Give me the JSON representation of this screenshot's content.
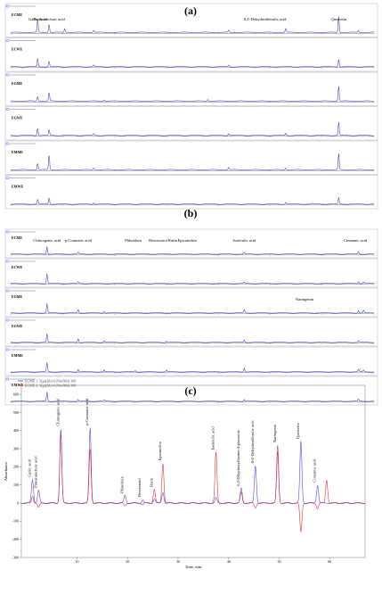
{
  "panels": [
    {
      "letter": "(a)",
      "samples": [
        "ECME",
        "ECWE",
        "EGME",
        "EGWE",
        "EMME",
        "EMWE"
      ],
      "compound_labels": [
        {
          "text": "Gallic Acid",
          "rt": 2.6
        },
        {
          "text": "Protocatechuic acid",
          "rt": 3.7
        },
        {
          "text": "8,4'-Dehydrodiferulic acid",
          "rt": 24.5
        },
        {
          "text": "Quercetin",
          "rt": 31.6
        }
      ],
      "peaks": [
        [
          [
            2.6,
            0.7
          ],
          [
            3.7,
            0.45
          ],
          [
            5.2,
            0.2
          ],
          [
            8.0,
            0.12
          ],
          [
            21.0,
            0.1
          ],
          [
            26.5,
            0.2
          ],
          [
            31.6,
            0.85
          ],
          [
            33.5,
            0.1
          ]
        ],
        [
          [
            2.6,
            0.45
          ],
          [
            3.7,
            0.3
          ],
          [
            8.0,
            0.08
          ],
          [
            21.0,
            0.08
          ],
          [
            31.6,
            0.4
          ]
        ],
        [
          [
            2.6,
            0.25
          ],
          [
            3.7,
            0.45
          ],
          [
            9.0,
            0.08
          ],
          [
            19.0,
            0.1
          ],
          [
            31.6,
            0.8
          ]
        ],
        [
          [
            2.6,
            0.4
          ],
          [
            3.7,
            0.3
          ],
          [
            8.0,
            0.1
          ],
          [
            21.0,
            0.1
          ],
          [
            26.5,
            0.12
          ],
          [
            31.6,
            0.7
          ]
        ],
        [
          [
            2.6,
            0.35
          ],
          [
            3.7,
            0.8
          ],
          [
            8.0,
            0.1
          ],
          [
            21.0,
            0.12
          ],
          [
            26.5,
            0.1
          ],
          [
            31.6,
            0.85
          ]
        ],
        [
          [
            2.6,
            0.25
          ],
          [
            3.7,
            0.35
          ],
          [
            8.0,
            0.08
          ],
          [
            26.5,
            0.1
          ],
          [
            31.6,
            0.35
          ]
        ]
      ]
    },
    {
      "letter": "(b)",
      "samples": [
        "ECME",
        "ECWE",
        "EGME",
        "EGWE",
        "EMME",
        "EMWE"
      ],
      "compound_labels": [
        {
          "text": "Chlorogenic acid",
          "rt": 3.5,
          "row": 0
        },
        {
          "text": "p-Coumaric acid",
          "rt": 6.5,
          "row": 0
        },
        {
          "text": "Phloridzin",
          "rt": 11.8,
          "row": 0
        },
        {
          "text": "Resveratrol",
          "rt": 14.2,
          "row": 0
        },
        {
          "text": "Rutin",
          "rt": 15.6,
          "row": 0
        },
        {
          "text": "Epicatechin",
          "rt": 17.0,
          "row": 0
        },
        {
          "text": "Isoferulic acid",
          "rt": 22.5,
          "row": 0
        },
        {
          "text": "Cinnamic acid",
          "rt": 33.2,
          "row": 0
        },
        {
          "text": "Naringenin",
          "rt": 28.3,
          "row": 2
        }
      ],
      "peaks": [
        [
          [
            3.5,
            0.45
          ],
          [
            6.5,
            0.12
          ],
          [
            22.5,
            0.1
          ],
          [
            33.5,
            0.15
          ]
        ],
        [
          [
            3.5,
            0.6
          ],
          [
            6.5,
            0.1
          ],
          [
            22.5,
            0.08
          ],
          [
            33.5,
            0.12
          ],
          [
            34.0,
            0.1
          ]
        ],
        [
          [
            3.5,
            0.55
          ],
          [
            6.5,
            0.22
          ],
          [
            9.0,
            0.1
          ],
          [
            22.5,
            0.2
          ],
          [
            33.5,
            0.15
          ],
          [
            34.0,
            0.15
          ]
        ],
        [
          [
            3.5,
            0.5
          ],
          [
            6.5,
            0.25
          ],
          [
            9.0,
            0.1
          ],
          [
            15.0,
            0.08
          ],
          [
            22.5,
            0.15
          ],
          [
            33.5,
            0.12
          ]
        ],
        [
          [
            3.5,
            0.55
          ],
          [
            6.5,
            0.15
          ],
          [
            9.0,
            0.1
          ],
          [
            12.0,
            0.08
          ],
          [
            15.0,
            0.1
          ],
          [
            22.5,
            0.25
          ],
          [
            33.5,
            0.15
          ],
          [
            34.0,
            0.1
          ]
        ],
        [
          [
            3.5,
            0.55
          ],
          [
            6.5,
            0.12
          ],
          [
            9.0,
            0.08
          ],
          [
            22.5,
            0.12
          ],
          [
            33.5,
            0.12
          ]
        ]
      ]
    },
    {
      "letter": "(c)",
      "xlabel": "Time, min",
      "ylabel": "Absorbance",
      "legend": [
        "ECME 1: 5(g)(2th) 4 (Nm/Mit) 300",
        "ECME 2: 5(g)(2th) 4 (Nm/Mit) 300"
      ],
      "compound_labels": [
        {
          "text": "Gallic acid",
          "rt": 1.2
        },
        {
          "text": "Protocatechuic acid",
          "rt": 2.4
        },
        {
          "text": "Chlorogenic acid",
          "rt": 6.8
        },
        {
          "text": "p-Coumaric acid",
          "rt": 12.6
        },
        {
          "text": "Phloridzin",
          "rt": 19.5
        },
        {
          "text": "Resveratrol",
          "rt": 23.0
        },
        {
          "text": "Rutin",
          "rt": 25.3
        },
        {
          "text": "Epicatechin",
          "rt": 27.0
        },
        {
          "text": "Isoferulic acid",
          "rt": 37.5
        },
        {
          "text": "6,2-Dihydroxyflavone-4-glucoside",
          "rt": 42.5
        },
        {
          "text": "8-4'-Dehydrodiferulic acid",
          "rt": 45.3
        },
        {
          "text": "Naringenin",
          "rt": 49.7
        },
        {
          "text": "Quercetin",
          "rt": 54.3
        },
        {
          "text": "Cinnamic acid",
          "rt": 57.6
        }
      ],
      "xticks": [
        10,
        20,
        30,
        40,
        50,
        60
      ],
      "yticks": [
        600,
        500,
        400,
        300,
        200,
        100,
        0,
        -100,
        -200,
        -300
      ],
      "ylim": [
        -300,
        650
      ],
      "xlim": [
        -1,
        67
      ]
    }
  ],
  "chart_data": {
    "type": "line",
    "title": "",
    "xlabel": "Time, min",
    "ylabel": "Absorbance",
    "xlim": [
      -1,
      67
    ],
    "ylim": [
      -300,
      650
    ],
    "series": [
      {
        "name": "ECME 1: 5(g)(2th) 4 (Nm/Mit) 300",
        "color": "#3b3bdc",
        "peaks": [
          [
            1.2,
            130
          ],
          [
            2.4,
            70
          ],
          [
            6.8,
            410
          ],
          [
            12.6,
            415
          ],
          [
            19.5,
            40
          ],
          [
            23.0,
            20
          ],
          [
            25.3,
            25
          ],
          [
            27.0,
            60
          ],
          [
            37.5,
            30
          ],
          [
            42.5,
            80
          ],
          [
            45.3,
            205
          ],
          [
            49.7,
            280
          ],
          [
            54.3,
            340
          ],
          [
            57.6,
            100
          ]
        ]
      },
      {
        "name": "ECME 2: 5(g)(2th) 4 (Nm/Mit) 300",
        "color": "#e02020",
        "peaks": [
          [
            1.2,
            40
          ],
          [
            2.4,
            -25
          ],
          [
            6.8,
            380
          ],
          [
            12.6,
            300
          ],
          [
            19.5,
            -15
          ],
          [
            23.0,
            -10
          ],
          [
            25.3,
            75
          ],
          [
            27.0,
            220
          ],
          [
            37.5,
            280
          ],
          [
            42.5,
            60
          ],
          [
            45.3,
            -25
          ],
          [
            49.7,
            320
          ],
          [
            54.3,
            -160
          ],
          [
            57.6,
            -30
          ],
          [
            59.4,
            130
          ]
        ]
      }
    ]
  },
  "colors": {
    "trace_a_b": "#3535d6",
    "trace_c1": "#3b3bdc",
    "trace_c2": "#e02020"
  }
}
